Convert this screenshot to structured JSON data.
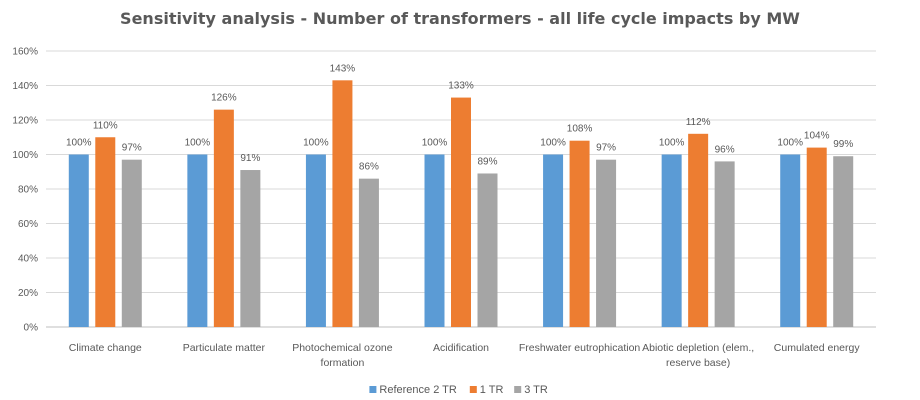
{
  "chart_data": {
    "type": "bar",
    "title": "Sensitivity analysis - Number of transformers - all life cycle impacts by MW",
    "xlabel": "",
    "ylabel": "",
    "ylim": [
      0,
      160
    ],
    "yticks": [
      "0%",
      "20%",
      "40%",
      "60%",
      "80%",
      "100%",
      "120%",
      "140%",
      "160%"
    ],
    "grid": true,
    "legend_position": "bottom",
    "categories": [
      [
        "Climate change"
      ],
      [
        "Particulate matter"
      ],
      [
        "Photochemical ozone",
        "formation"
      ],
      [
        "Acidification"
      ],
      [
        "Freshwater eutrophication"
      ],
      [
        "Abiotic depletion (elem.,",
        "reserve base)"
      ],
      [
        "Cumulated energy"
      ]
    ],
    "series": [
      {
        "name": "Reference 2 TR",
        "color": "#5B9BD5",
        "values": [
          100,
          100,
          100,
          100,
          100,
          100,
          100
        ],
        "labels": [
          "100%",
          "100%",
          "100%",
          "100%",
          "100%",
          "100%",
          "100%"
        ]
      },
      {
        "name": "1 TR",
        "color": "#ED7D31",
        "values": [
          110,
          126,
          143,
          133,
          108,
          112,
          104
        ],
        "labels": [
          "110%",
          "126%",
          "143%",
          "133%",
          "108%",
          "112%",
          "104%"
        ]
      },
      {
        "name": "3 TR",
        "color": "#A5A5A5",
        "values": [
          97,
          91,
          86,
          89,
          97,
          96,
          99
        ],
        "labels": [
          "97%",
          "91%",
          "86%",
          "89%",
          "97%",
          "96%",
          "99%"
        ]
      }
    ]
  }
}
